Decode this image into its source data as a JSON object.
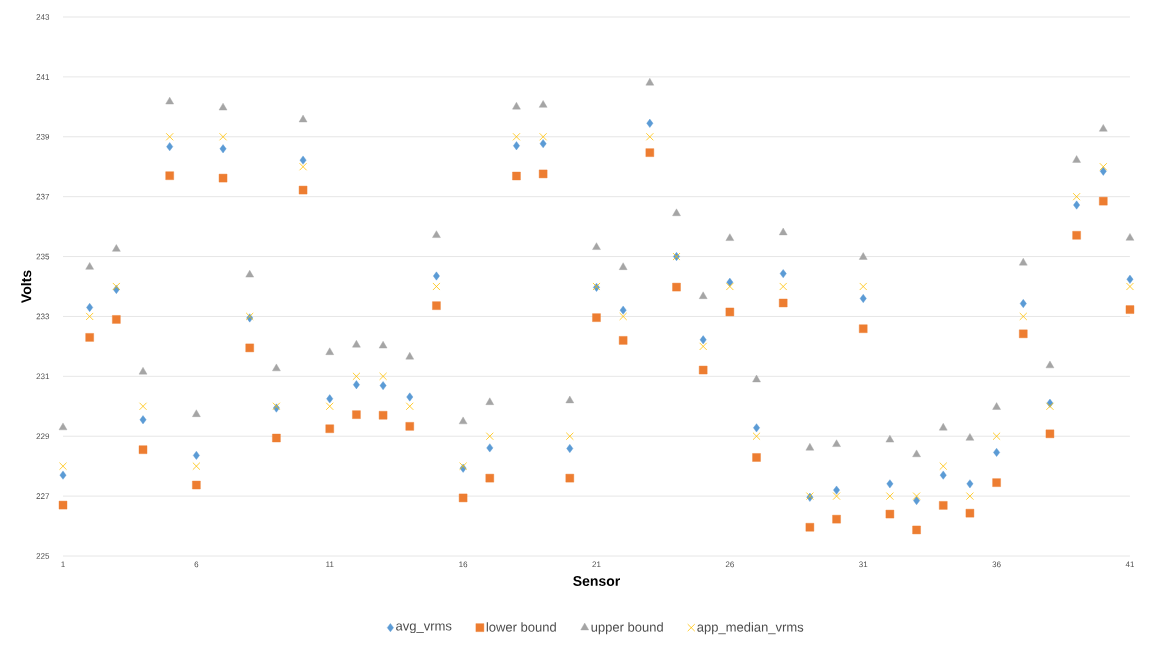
{
  "chart_data": {
    "type": "scatter",
    "xlabel": "Sensor",
    "ylabel": "Volts",
    "x": [
      1,
      2,
      3,
      4,
      5,
      6,
      7,
      8,
      9,
      10,
      11,
      12,
      13,
      14,
      15,
      16,
      17,
      18,
      19,
      20,
      21,
      22,
      23,
      24,
      25,
      26,
      27,
      28,
      29,
      30,
      31,
      32,
      33,
      34,
      35,
      36,
      37,
      38,
      39,
      40,
      41
    ],
    "xlim": [
      1,
      41
    ],
    "xticks": [
      1,
      6,
      11,
      16,
      21,
      26,
      31,
      36,
      41
    ],
    "ylim": [
      225,
      243
    ],
    "yticks": [
      225,
      227,
      229,
      231,
      233,
      235,
      237,
      239,
      241,
      243
    ],
    "grid": "y",
    "legend": "bottom",
    "series": [
      {
        "name": "avg_vrms",
        "color": "#5b9bd5",
        "marker": "diamond",
        "values": [
          227.7,
          233.3,
          233.9,
          229.55,
          238.67,
          228.36,
          238.6,
          232.95,
          229.94,
          238.22,
          230.25,
          230.72,
          230.69,
          230.31,
          234.35,
          227.93,
          228.61,
          238.7,
          238.77,
          228.59,
          233.97,
          233.21,
          239.45,
          235.0,
          232.22,
          234.14,
          229.28,
          234.43,
          226.96,
          227.2,
          233.6,
          227.41,
          226.85,
          227.7,
          227.41,
          228.46,
          233.43,
          230.1,
          236.72,
          237.85,
          234.24
        ]
      },
      {
        "name": "lower bound",
        "color": "#ed7d31",
        "marker": "square",
        "values": [
          226.7,
          232.3,
          232.9,
          228.55,
          237.7,
          227.37,
          237.62,
          231.95,
          228.94,
          237.22,
          229.25,
          229.72,
          229.7,
          229.33,
          233.36,
          226.94,
          227.6,
          237.69,
          237.76,
          227.6,
          232.96,
          232.2,
          238.47,
          233.98,
          231.21,
          233.15,
          228.29,
          233.45,
          225.96,
          226.23,
          232.59,
          226.4,
          225.87,
          226.69,
          226.43,
          227.45,
          232.42,
          229.08,
          235.71,
          236.85,
          233.23
        ]
      },
      {
        "name": "upper bound",
        "color": "#a5a5a5",
        "marker": "triangle",
        "values": [
          229.29,
          234.65,
          235.25,
          231.15,
          240.17,
          229.73,
          239.97,
          234.39,
          231.26,
          239.57,
          231.8,
          232.05,
          232.02,
          231.65,
          235.71,
          229.49,
          230.13,
          240.0,
          240.06,
          230.19,
          235.31,
          234.64,
          240.8,
          236.44,
          233.67,
          235.61,
          230.89,
          235.8,
          228.61,
          228.73,
          234.98,
          228.88,
          228.39,
          229.28,
          228.94,
          229.97,
          234.79,
          231.36,
          238.22,
          239.26,
          235.62
        ]
      },
      {
        "name": "app_median_vrms",
        "color": "#ffc000",
        "marker": "cross",
        "values": [
          228,
          233,
          234,
          230,
          239,
          228,
          239,
          233,
          230,
          238,
          230,
          231,
          231,
          230,
          234,
          228,
          229,
          239,
          239,
          229,
          234,
          233,
          239,
          235,
          232,
          234,
          229,
          234,
          227,
          227,
          234,
          227,
          227,
          228,
          227,
          229,
          233,
          230,
          237,
          238,
          234
        ]
      }
    ]
  }
}
